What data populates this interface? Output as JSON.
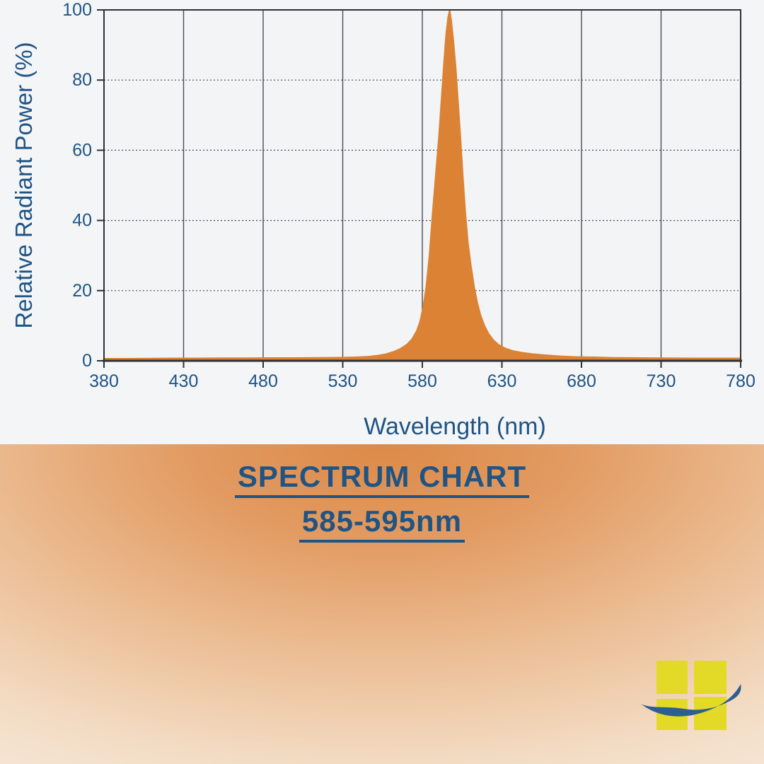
{
  "page": {
    "background": "#f4f5f7"
  },
  "chart": {
    "y_axis_title": "Relative Radiant Power (%)",
    "x_axis_title": "Wavelength (nm)",
    "x_ticks": [
      380,
      430,
      480,
      530,
      580,
      630,
      680,
      730,
      780
    ],
    "y_ticks": [
      0,
      20,
      40,
      60,
      80,
      100
    ],
    "plot_bg": "#f3f4f6",
    "grid_color": "#4a4d52",
    "axis_color": "#2e3135",
    "label_color": "#1f5484",
    "fill_color": "#db8234"
  },
  "banner": {
    "title_line1": "SPECTRUM CHART",
    "title_line2": "585-595nm",
    "text_color": "#1c4a78",
    "gradient": [
      "#dc8a48",
      "#e29b62",
      "#ecbe95",
      "#f3dcc4",
      "#f8f0e8"
    ]
  },
  "logo": {
    "name": "four-pane-window-with-orbit-swoosh",
    "square_color": "#e3da28",
    "swoosh_color": "#2e5e8e"
  },
  "chart_data": {
    "type": "area",
    "title": "SPECTRUM CHART 585-595nm",
    "xlabel": "Wavelength (nm)",
    "ylabel": "Relative Radiant Power (%)",
    "xlim": [
      380,
      780
    ],
    "ylim": [
      0,
      100
    ],
    "x_ticks": [
      380,
      430,
      480,
      530,
      580,
      630,
      680,
      730,
      780
    ],
    "y_ticks": [
      0,
      20,
      40,
      60,
      80,
      100
    ],
    "grid": true,
    "legend": false,
    "peak_wavelength_nm": 597,
    "peak_value_pct": 100,
    "series": [
      {
        "name": "relative radiant power",
        "points": [
          [
            380,
            0.8
          ],
          [
            395,
            0.8
          ],
          [
            410,
            0.85
          ],
          [
            425,
            0.9
          ],
          [
            440,
            0.9
          ],
          [
            455,
            0.95
          ],
          [
            470,
            0.95
          ],
          [
            485,
            1.0
          ],
          [
            500,
            1.0
          ],
          [
            515,
            1.05
          ],
          [
            528,
            1.1
          ],
          [
            538,
            1.2
          ],
          [
            546,
            1.4
          ],
          [
            552,
            1.7
          ],
          [
            557,
            2.1
          ],
          [
            562,
            2.8
          ],
          [
            566,
            3.6
          ],
          [
            570,
            4.8
          ],
          [
            573,
            6.2
          ],
          [
            576,
            8.5
          ],
          [
            578,
            11
          ],
          [
            580,
            15
          ],
          [
            582,
            21
          ],
          [
            584,
            30
          ],
          [
            586,
            42
          ],
          [
            588,
            53
          ],
          [
            590,
            64
          ],
          [
            591.5,
            74
          ],
          [
            593,
            84
          ],
          [
            594.5,
            93
          ],
          [
            595.8,
            98
          ],
          [
            596.8,
            100
          ],
          [
            597.6,
            100
          ],
          [
            598.6,
            97
          ],
          [
            600,
            91
          ],
          [
            601.5,
            83
          ],
          [
            603,
            73
          ],
          [
            604.5,
            63
          ],
          [
            606,
            52
          ],
          [
            607.5,
            42
          ],
          [
            609,
            34
          ],
          [
            611,
            27
          ],
          [
            613,
            21
          ],
          [
            615,
            16.5
          ],
          [
            617,
            13
          ],
          [
            619.5,
            10
          ],
          [
            622,
            7.8
          ],
          [
            625,
            6
          ],
          [
            628,
            4.8
          ],
          [
            632,
            3.8
          ],
          [
            637,
            3
          ],
          [
            643,
            2.5
          ],
          [
            650,
            2.1
          ],
          [
            658,
            1.8
          ],
          [
            667,
            1.5
          ],
          [
            677,
            1.3
          ],
          [
            688,
            1.2
          ],
          [
            700,
            1.05
          ],
          [
            715,
            1.0
          ],
          [
            730,
            0.95
          ],
          [
            750,
            0.9
          ],
          [
            765,
            0.9
          ],
          [
            780,
            0.9
          ]
        ]
      }
    ]
  }
}
